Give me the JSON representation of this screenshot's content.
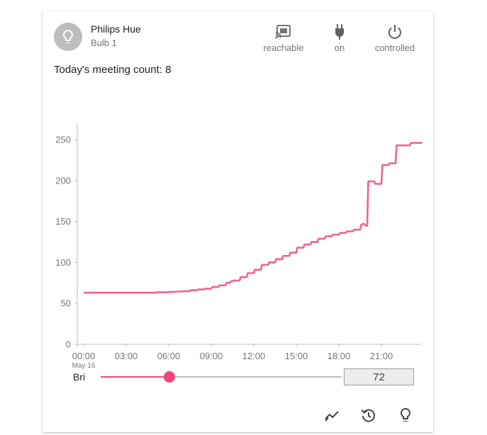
{
  "header": {
    "title": "Philips Hue",
    "subtitle": "Bulb 1",
    "avatar_icon": "lightbulb-icon"
  },
  "status": [
    {
      "label": "reachable",
      "icon": "cast-connected-icon"
    },
    {
      "label": "on",
      "icon": "power-plug-icon"
    },
    {
      "label": "controlled",
      "icon": "power-icon"
    }
  ],
  "meeting_text": "Today's meeting count: 8",
  "chart_data": {
    "type": "line",
    "x_ticks": [
      "00:00",
      "03:00",
      "06:00",
      "09:00",
      "12:00",
      "15:00",
      "18:00",
      "21:00"
    ],
    "x_subtick": "May 16",
    "y_ticks": [
      "0",
      "50",
      "100",
      "150",
      "200",
      "250"
    ],
    "ylim": [
      0,
      270
    ],
    "xlim_hours": [
      0,
      23.8
    ],
    "color": "#f06292",
    "series": [
      {
        "x": [
          0,
          2,
          4,
          5,
          6,
          6.5,
          7,
          7.5,
          8,
          8.5,
          9,
          9.5,
          10,
          10.3,
          10.5,
          11,
          11.5,
          12,
          12.5,
          13,
          13.5,
          14,
          14.5,
          15,
          15.5,
          16,
          16.5,
          17,
          17.5,
          18,
          18.5,
          19,
          19.5,
          19.6,
          19.8,
          20,
          20.5,
          21,
          21.5,
          22,
          22.5,
          23,
          23.8
        ],
        "y": [
          63,
          63,
          63,
          63.5,
          64,
          64.5,
          65,
          66,
          67,
          68,
          70,
          72,
          75,
          77,
          78,
          82,
          87,
          91,
          97,
          100,
          104,
          108,
          112,
          118,
          122,
          125,
          129,
          132,
          134,
          136,
          138,
          140,
          146,
          147,
          145,
          199,
          196,
          219,
          221,
          243,
          243,
          246,
          246
        ]
      }
    ]
  },
  "slider": {
    "label": "Bri",
    "value": 72,
    "fraction": 0.284,
    "input_value": "72"
  },
  "actions": [
    {
      "icon": "chart-line-icon"
    },
    {
      "icon": "history-icon"
    },
    {
      "icon": "lightbulb-outline-icon"
    }
  ],
  "colors": {
    "accent": "#f0467a",
    "line": "#f06292",
    "muted": "#757575"
  }
}
